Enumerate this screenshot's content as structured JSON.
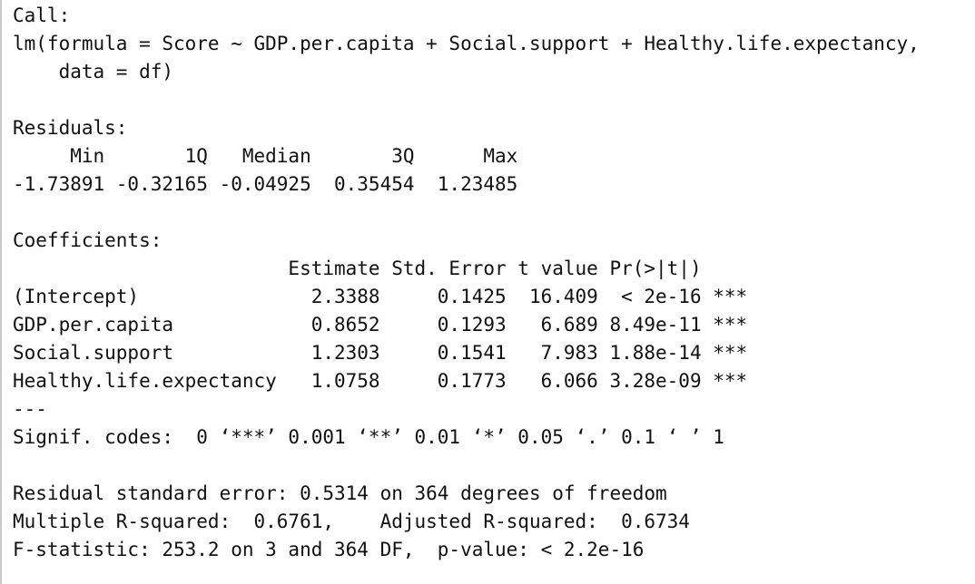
{
  "console": {
    "lines": [
      "Call:",
      "lm(formula = Score ~ GDP.per.capita + Social.support + Healthy.life.expectancy,",
      "    data = df)",
      "",
      "Residuals:",
      "     Min       1Q   Median       3Q      Max ",
      "-1.73891 -0.32165 -0.04925  0.35454  1.23485 ",
      "",
      "Coefficients:",
      "                        Estimate Std. Error t value Pr(>|t|)    ",
      "(Intercept)               2.3388     0.1425  16.409  < 2e-16 ***",
      "GDP.per.capita            0.8652     0.1293   6.689 8.49e-11 ***",
      "Social.support            1.2303     0.1541   7.983 1.88e-14 ***",
      "Healthy.life.expectancy   1.0758     0.1773   6.066 3.28e-09 ***",
      "---",
      "Signif. codes:  0 ‘***’ 0.001 ‘**’ 0.01 ‘*’ 0.05 ‘.’ 0.1 ‘ ’ 1",
      "",
      "Residual standard error: 0.5314 on 364 degrees of freedom",
      "Multiple R-squared:  0.6761,\tAdjusted R-squared:  0.6734 ",
      "F-statistic: 253.2 on 3 and 364 DF,  p-value: < 2.2e-16"
    ]
  }
}
